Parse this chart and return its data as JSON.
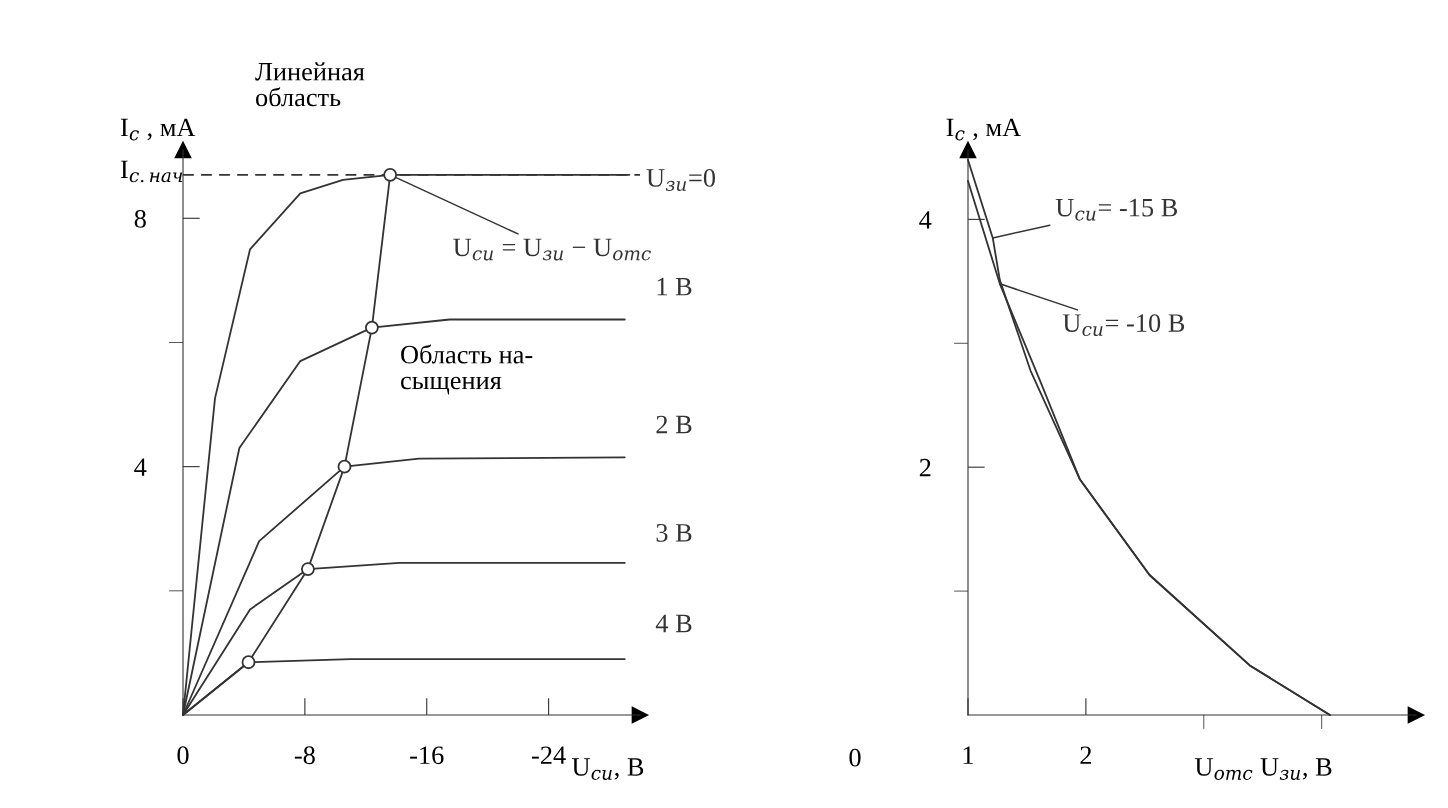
{
  "chart_data": [
    {
      "type": "line",
      "xlabel": "U$_{си}$, В",
      "ylabel": "I$_{с}$ , мА",
      "xlim": [
        0,
        -30
      ],
      "xticks": [
        0,
        -8,
        -16,
        -24
      ],
      "ylim": [
        0,
        9.1
      ],
      "yticks": [
        {
          "value": 2,
          "label": null
        },
        4,
        {
          "value": 6,
          "label": null
        },
        8
      ],
      "ref_lines": [
        {
          "axis": "y",
          "value": 8.7,
          "label": "I$_{с.нач}$",
          "line_style": "dashed",
          "color": "#333333"
        }
      ],
      "annotations": [
        "Линейная\nобласть",
        "Область на-\nсыщения"
      ],
      "series": [
        {
          "name": "U$_{зи}$=0",
          "color": "#333333",
          "x": [
            0,
            -2.1,
            -4.4,
            -7.7,
            -10.5,
            -13.6,
            -29.3
          ],
          "values": [
            0,
            5.1,
            7.5,
            8.4,
            8.62,
            8.7,
            8.7
          ]
        },
        {
          "name": "1 В",
          "color": "#333333",
          "x": [
            0,
            -3.7,
            -7.7,
            -12.4,
            -17.5,
            -29
          ],
          "values": [
            0,
            4.3,
            5.7,
            6.24,
            6.37,
            6.37
          ]
        },
        {
          "name": "2 В",
          "color": "#333333",
          "x": [
            0,
            -5,
            -10.6,
            -15.5,
            -29
          ],
          "values": [
            0,
            2.8,
            4.0,
            4.13,
            4.15
          ]
        },
        {
          "name": "3 В",
          "color": "#333333",
          "x": [
            0,
            -4.4,
            -8.2,
            -14.2,
            -29
          ],
          "values": [
            0,
            1.7,
            2.35,
            2.45,
            2.45
          ]
        },
        {
          "name": "4 В",
          "color": "#333333",
          "x": [
            0,
            -4.3,
            -11,
            -29
          ],
          "values": [
            0,
            0.85,
            0.9,
            0.9
          ]
        },
        {
          "name": "U$_{си}$ = U$_{зи}$ − U$_{отс}$",
          "color": "#333333",
          "x": [
            0,
            -4.3,
            -8.2,
            -10.6,
            -12.4,
            -13.6
          ],
          "values": [
            0,
            0.85,
            2.35,
            4.0,
            6.24,
            8.7
          ]
        },
        {
          "type": "scatter",
          "marker": "circle",
          "color": "#333333",
          "x": [
            -4.3,
            -8.2,
            -10.6,
            -12.4,
            -13.6
          ],
          "values": [
            0.85,
            2.35,
            4.0,
            6.24,
            8.7
          ]
        }
      ]
    },
    {
      "type": "line",
      "xlabel": "U$_{отс}$ U$_{зи}$, В",
      "ylabel": "I$_{с}$ , мА",
      "xlim": [
        1,
        4.8
      ],
      "xticks": [
        1,
        2,
        {
          "value": 3,
          "label": null
        },
        {
          "value": 4,
          "label": null
        }
      ],
      "ylim": [
        0,
        4.56
      ],
      "yticks": [
        {
          "value": 1,
          "label": null
        },
        2,
        {
          "value": 3,
          "label": null
        },
        4
      ],
      "annotations": [
        "0"
      ],
      "series": [
        {
          "name": "U$_{си}$= -15 В",
          "color": "#333333",
          "x": [
            1,
            1.21,
            1.27,
            1.53,
            1.95,
            2.54,
            3.39,
            4.07
          ],
          "values": [
            4.48,
            3.85,
            3.51,
            2.78,
            1.9,
            1.13,
            0.4,
            0
          ]
        },
        {
          "name": "U$_{си}$= -10 В",
          "color": "#333333",
          "x": [
            1,
            1.27,
            1.61,
            1.95,
            2.54,
            3.39,
            4.07
          ],
          "values": [
            4.31,
            3.48,
            2.7,
            1.9,
            1.13,
            0.4,
            0
          ]
        }
      ]
    }
  ]
}
